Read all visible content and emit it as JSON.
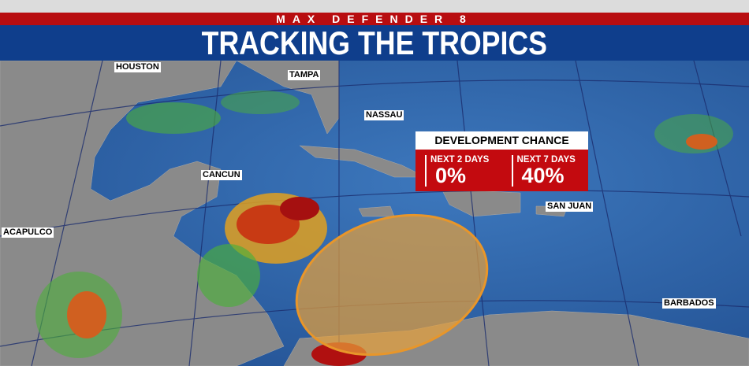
{
  "header": {
    "brand": "MAX DEFENDER 8",
    "title": "TRACKING THE TROPICS"
  },
  "cities": {
    "houston": "HOUSTON",
    "tampa": "TAMPA",
    "nassau": "NASSAU",
    "cancun": "CANCUN",
    "acapulco": "ACAPULCO",
    "san_juan": "SAN JUAN",
    "barbados": "BARBADOS"
  },
  "development": {
    "title": "DEVELOPMENT CHANCE",
    "periods": [
      {
        "label": "NEXT 2 DAYS",
        "value": "0%"
      },
      {
        "label": "NEXT 7 DAYS",
        "value": "40%"
      }
    ]
  },
  "colors": {
    "ocean": "#2f64a8",
    "land": "#8a8a8a",
    "outlook_area": "#e8a13a",
    "brand_red": "#b80d10",
    "brand_blue": "#0f3e8c"
  }
}
